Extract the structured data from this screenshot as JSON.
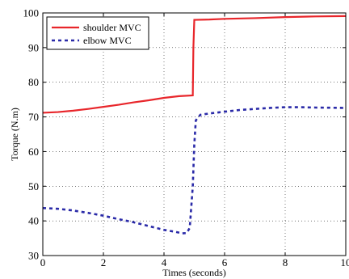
{
  "chart_data": {
    "type": "line",
    "xlabel": "Times (seconds)",
    "ylabel": "Torque (N.m)",
    "xlim": [
      0,
      10
    ],
    "ylim": [
      30,
      100
    ],
    "xticks": [
      0,
      2,
      4,
      6,
      8,
      10
    ],
    "yticks": [
      30,
      40,
      50,
      60,
      70,
      80,
      90,
      100
    ],
    "grid": true,
    "legend_position": "top-left",
    "series": [
      {
        "name": "shoulder MVC",
        "color": "#e8262b",
        "style": "solid",
        "x": [
          0,
          0.5,
          1,
          1.5,
          2,
          2.5,
          3,
          3.5,
          4,
          4.5,
          4.95,
          4.97,
          5.0,
          5.5,
          6,
          7,
          8,
          9,
          10
        ],
        "y": [
          71.2,
          71.4,
          71.8,
          72.3,
          72.9,
          73.5,
          74.2,
          74.8,
          75.5,
          76.0,
          76.2,
          90.0,
          98.0,
          98.1,
          98.3,
          98.5,
          98.8,
          99.0,
          99.1
        ]
      },
      {
        "name": "elbow MVC",
        "color": "#2a2aa8",
        "style": "dashed",
        "x": [
          0,
          0.5,
          1,
          1.5,
          2,
          2.5,
          3,
          3.5,
          4,
          4.4,
          4.6,
          4.75,
          4.85,
          4.95,
          5.0,
          5.05,
          5.2,
          5.5,
          6,
          6.5,
          7,
          7.5,
          8,
          8.5,
          9,
          10
        ],
        "y": [
          43.7,
          43.5,
          43.0,
          42.3,
          41.5,
          40.5,
          39.6,
          38.5,
          37.4,
          36.8,
          36.4,
          36.5,
          38.0,
          50.0,
          62.0,
          69.0,
          70.6,
          71.0,
          71.5,
          72.0,
          72.3,
          72.6,
          72.8,
          72.8,
          72.7,
          72.6
        ]
      }
    ]
  }
}
